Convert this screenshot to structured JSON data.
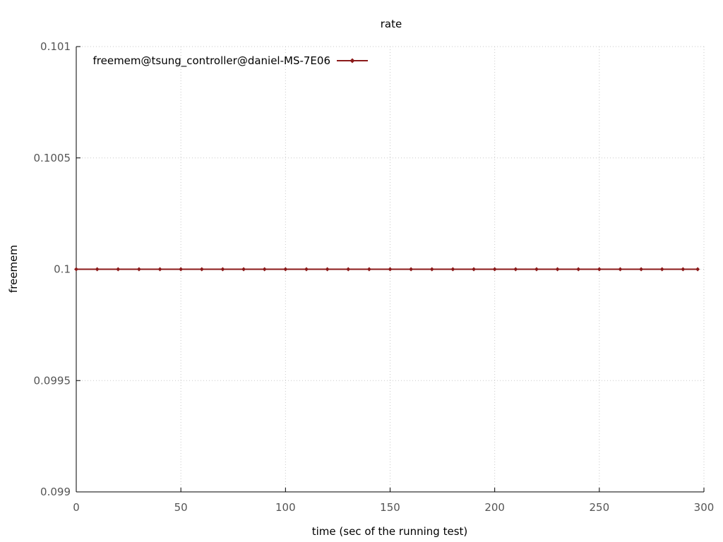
{
  "chart_data": {
    "type": "line",
    "title": "rate",
    "xlabel": "time (sec of the running test)",
    "ylabel": "freemem",
    "xlim": [
      0,
      300
    ],
    "ylim": [
      0.099,
      0.101
    ],
    "x_ticks": [
      0,
      50,
      100,
      150,
      200,
      250,
      300
    ],
    "x_tick_labels": [
      "0",
      "50",
      "100",
      "150",
      "200",
      "250",
      "300"
    ],
    "y_ticks": [
      0.099,
      0.0995,
      0.1,
      0.1005,
      0.101
    ],
    "y_tick_labels": [
      "0.099",
      "0.0995",
      "0.1",
      "0.1005",
      "0.101"
    ],
    "grid": true,
    "legend_position": "top-left",
    "series": [
      {
        "name": "freemem@tsung_controller@daniel-MS-7E06",
        "color": "#8b1a1a",
        "marker": "diamond",
        "x": [
          0,
          10,
          20,
          30,
          40,
          50,
          60,
          70,
          80,
          90,
          100,
          110,
          120,
          130,
          140,
          150,
          160,
          170,
          180,
          190,
          200,
          210,
          220,
          230,
          240,
          250,
          260,
          270,
          280,
          290,
          297
        ],
        "y": [
          0.1,
          0.1,
          0.1,
          0.1,
          0.1,
          0.1,
          0.1,
          0.1,
          0.1,
          0.1,
          0.1,
          0.1,
          0.1,
          0.1,
          0.1,
          0.1,
          0.1,
          0.1,
          0.1,
          0.1,
          0.1,
          0.1,
          0.1,
          0.1,
          0.1,
          0.1,
          0.1,
          0.1,
          0.1,
          0.1,
          0.1
        ]
      }
    ]
  }
}
